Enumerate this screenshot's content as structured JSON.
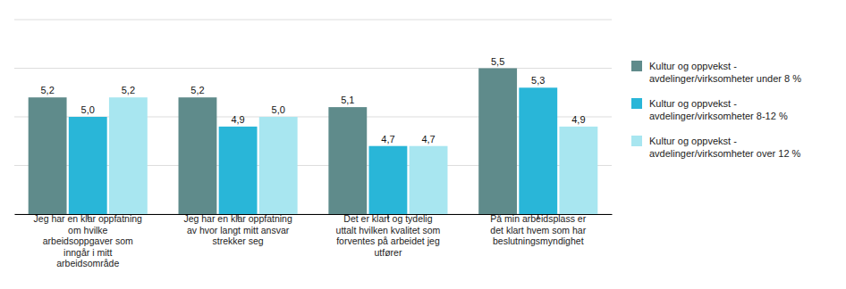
{
  "chart_data": {
    "type": "bar",
    "categories": [
      "Jeg har en klar oppfatning\nom hvilke\narbeidsoppgaver som\ninngår i mitt\narbeidsområde",
      "Jeg har en klar oppfatning\nav hvor langt mitt ansvar\nstrekker seg",
      "Det er klart og tydelig\nuttalt hvilken kvalitet som\nforventes på arbeidet jeg\nutfører",
      "På min arbeidsplass er\ndet klart hvem som har\nbeslutningsmyndighet"
    ],
    "series": [
      {
        "name": "Kultur og oppvekst -\navdelinger/virksomheter under 8 %",
        "color": "#5f8b8b",
        "values": [
          5.2,
          5.2,
          5.1,
          5.5
        ],
        "value_labels": [
          "5,2",
          "5,2",
          "5,1",
          "5,5"
        ]
      },
      {
        "name": "Kultur og oppvekst -\navdelinger/virksomheter 8-12 %",
        "color": "#29b6d8",
        "values": [
          5.0,
          4.9,
          4.7,
          5.3
        ],
        "value_labels": [
          "5,0",
          "4,9",
          "4,7",
          "5,3"
        ]
      },
      {
        "name": "Kultur og oppvekst -\navdelinger/virksomheter over 12 %",
        "color": "#a8e6f0",
        "values": [
          5.2,
          5.0,
          4.7,
          4.9
        ],
        "value_labels": [
          "5,2",
          "5,0",
          "4,7",
          "4,9"
        ]
      }
    ],
    "ylim": [
      4.0,
      6.0
    ],
    "yticks": [
      4.0,
      4.5,
      5.0,
      5.5,
      6.0
    ],
    "grid": true,
    "tick_labels": "x",
    "data_labels": true,
    "legend": "right"
  }
}
